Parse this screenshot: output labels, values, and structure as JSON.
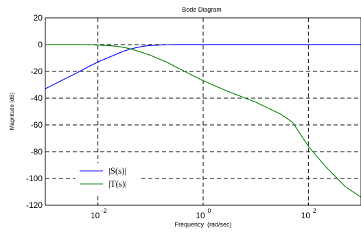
{
  "chart_data": {
    "type": "line",
    "title": "Bode Diagram",
    "xlabel": "Frequency  (rad/sec)",
    "ylabel": "Magnitude (dB)",
    "xscale": "log",
    "xlim": [
      0.001,
      1000
    ],
    "ylim": [
      -120,
      20
    ],
    "grid": true,
    "legend_placement": "bottom-left",
    "x_ticks": [
      {
        "value": 0.01,
        "base": "10",
        "exp": "-2"
      },
      {
        "value": 1,
        "base": "10",
        "exp": "0"
      },
      {
        "value": 100,
        "base": "10",
        "exp": "2"
      }
    ],
    "y_ticks": [
      20,
      0,
      -20,
      -40,
      -60,
      -80,
      -100,
      -120
    ],
    "y_tick_labels": [
      "20",
      "0",
      "-20",
      "-40",
      "-60",
      "-80",
      "-100",
      "-120"
    ],
    "series": [
      {
        "name": "|S(s)|",
        "color": "#0000ff",
        "x": [
          0.001,
          0.002,
          0.004,
          0.007,
          0.01,
          0.02,
          0.03,
          0.04,
          0.05,
          0.07,
          0.1,
          0.15,
          0.2,
          0.3,
          1,
          10,
          100,
          1000
        ],
        "y": [
          -33,
          -27,
          -21,
          -16,
          -13,
          -8,
          -5,
          -3.5,
          -2.5,
          -1.3,
          -0.6,
          -0.3,
          -0.1,
          0,
          0,
          0,
          0,
          0
        ]
      },
      {
        "name": "|T(s)|",
        "color": "#008000",
        "x": [
          0.001,
          0.005,
          0.01,
          0.02,
          0.03,
          0.04,
          0.06,
          0.1,
          0.2,
          0.5,
          1,
          3,
          10,
          30,
          50,
          100,
          200,
          500,
          1000
        ],
        "y": [
          0,
          0,
          -0.3,
          -1,
          -2,
          -3,
          -5,
          -8,
          -13,
          -21,
          -27,
          -35,
          -43,
          -52,
          -58,
          -76,
          -90,
          -106,
          -114
        ]
      }
    ]
  }
}
